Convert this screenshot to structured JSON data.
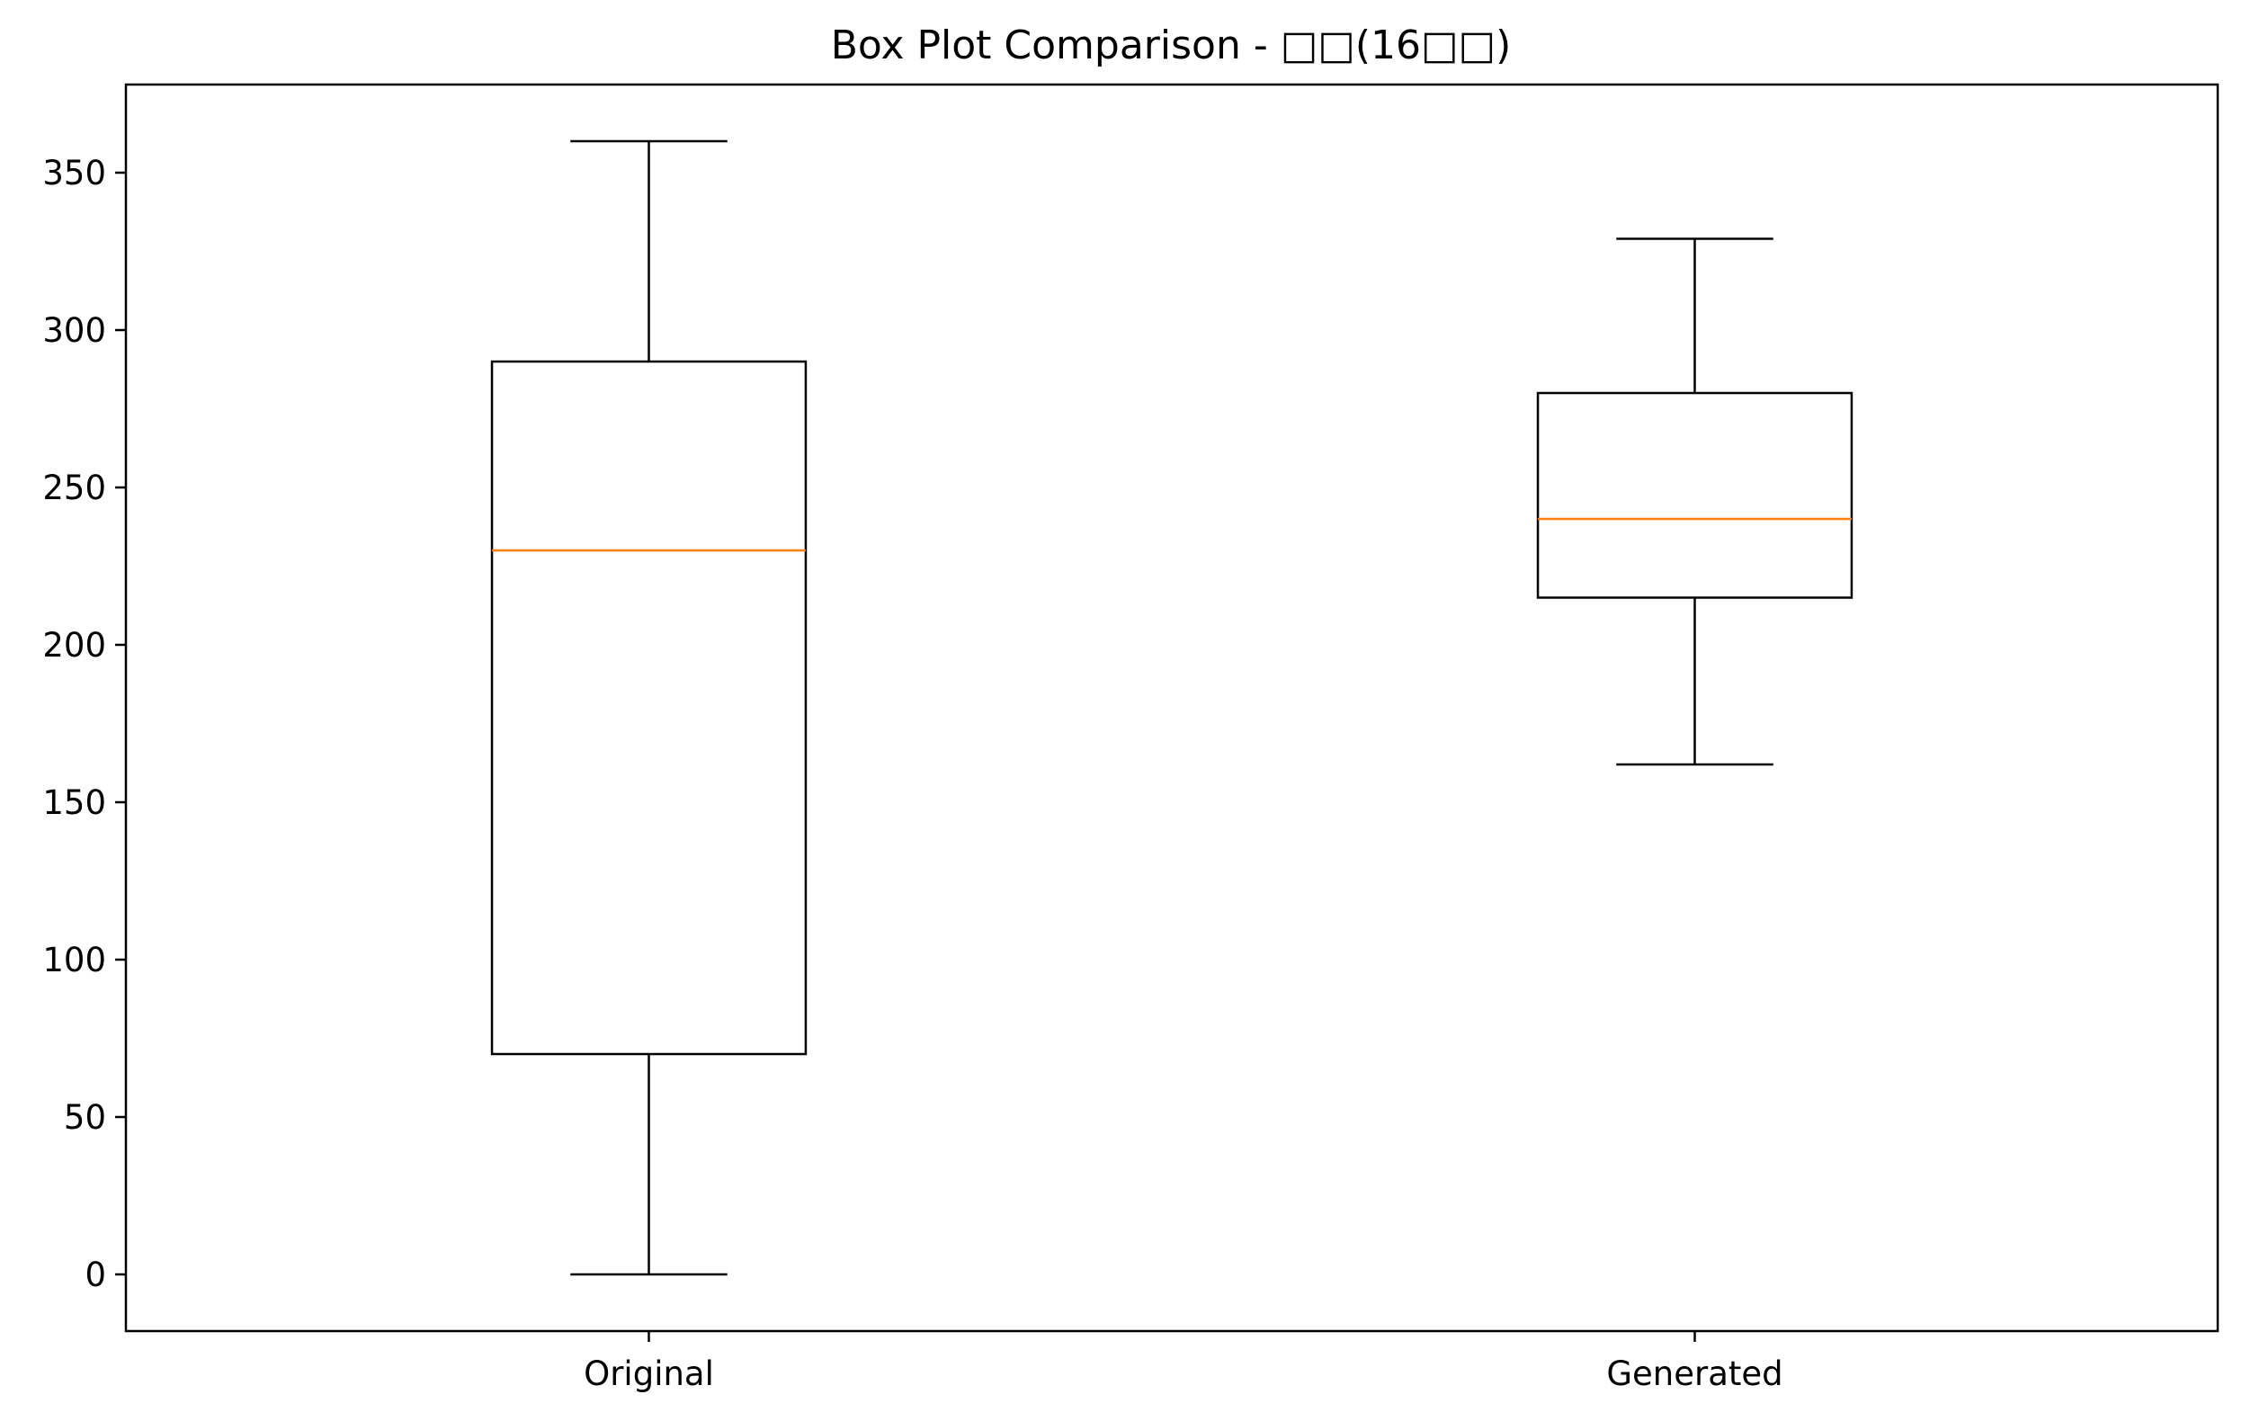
{
  "chart_data": {
    "type": "box",
    "title": "Box Plot Comparison - □□(16□□)",
    "xlabel": "",
    "ylabel": "",
    "ylim": [
      -18,
      378
    ],
    "yticks": [
      0,
      50,
      100,
      150,
      200,
      250,
      300,
      350
    ],
    "categories": [
      "Original",
      "Generated"
    ],
    "boxes": [
      {
        "category": "Original",
        "whisker_low": 0,
        "q1": 70,
        "median": 230,
        "q3": 290,
        "whisker_high": 360
      },
      {
        "category": "Generated",
        "whisker_low": 162,
        "q1": 215,
        "median": 240,
        "q3": 280,
        "whisker_high": 329
      }
    ],
    "grid": false,
    "legend": "none",
    "colors": {
      "box": "#000000",
      "median": "#ff7f0e"
    }
  }
}
